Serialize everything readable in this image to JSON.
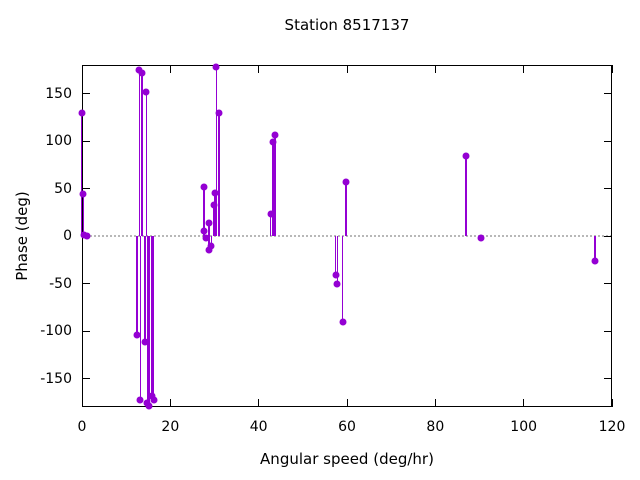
{
  "chart_data": {
    "type": "scatter",
    "style": "stem-impulses-from-zero",
    "title": "Station 8517137",
    "xlabel": "Angular speed (deg/hr)",
    "ylabel": "Phase (deg)",
    "xlim": [
      0,
      120
    ],
    "ylim": [
      -180,
      180
    ],
    "xticks": [
      0,
      20,
      40,
      60,
      80,
      100,
      120
    ],
    "yticks": [
      -150,
      -100,
      -50,
      0,
      50,
      100,
      150
    ],
    "grid": false,
    "legend": false,
    "zero_line_y": 0,
    "point_color": "#9400d3",
    "zero_line_color": "#b8b8b8",
    "axis_color": "#000000",
    "background_color": "#ffffff",
    "points": [
      [
        0.0,
        129
      ],
      [
        0.2,
        44
      ],
      [
        0.4,
        1
      ],
      [
        1.1,
        0
      ],
      [
        12.4,
        -104
      ],
      [
        13.0,
        175
      ],
      [
        13.2,
        -173
      ],
      [
        13.6,
        172
      ],
      [
        14.3,
        -112
      ],
      [
        14.6,
        152
      ],
      [
        14.8,
        -176
      ],
      [
        15.2,
        -179
      ],
      [
        15.8,
        -168
      ],
      [
        16.2,
        -173
      ],
      [
        27.6,
        52
      ],
      [
        27.7,
        5
      ],
      [
        28.1,
        -2
      ],
      [
        28.7,
        14
      ],
      [
        28.8,
        -15
      ],
      [
        29.3,
        -10
      ],
      [
        29.9,
        33
      ],
      [
        30.1,
        45
      ],
      [
        30.4,
        178
      ],
      [
        31.0,
        130
      ],
      [
        42.7,
        23
      ],
      [
        43.2,
        99
      ],
      [
        43.7,
        106
      ],
      [
        57.4,
        -41
      ],
      [
        57.8,
        -50
      ],
      [
        59.0,
        -91
      ],
      [
        59.8,
        57
      ],
      [
        86.9,
        84
      ],
      [
        90.3,
        -2
      ],
      [
        116.1,
        -26
      ]
    ]
  }
}
